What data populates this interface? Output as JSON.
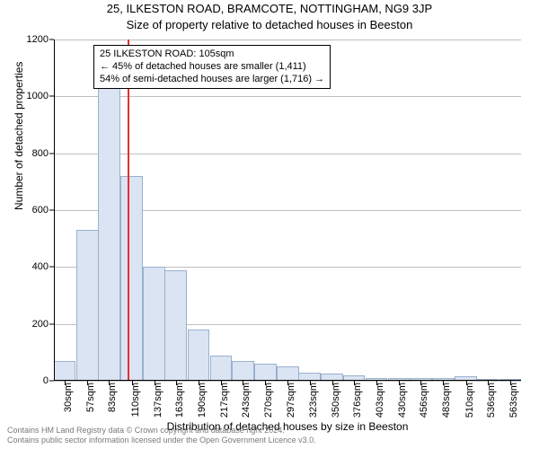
{
  "title": "25, ILKESTON ROAD, BRAMCOTE, NOTTINGHAM, NG9 3JP",
  "subtitle": "Size of property relative to detached houses in Beeston",
  "ylabel": "Number of detached properties",
  "xlabel": "Distribution of detached houses by size in Beeston",
  "footer_line1": "Contains HM Land Registry data © Crown copyright and database right 2024.",
  "footer_line2": "Contains public sector information licensed under the Open Government Licence v3.0.",
  "annotation": {
    "line1": "25 ILKESTON ROAD: 105sqm",
    "line2": "← 45% of detached houses are smaller (1,411)",
    "line3": "54% of semi-detached houses are larger (1,716) →"
  },
  "chart": {
    "type": "histogram",
    "ylim": [
      0,
      1200
    ],
    "ytick_step": 200,
    "background_color": "#ffffff",
    "grid_color": "#bfbfbf",
    "bar_fill": "#dbe4f2",
    "bar_stroke": "#9ab0d0",
    "marker_color": "#e43030",
    "marker_x_value": 105,
    "x_min": 17,
    "x_max": 576,
    "bin_width_sqm": 26.5,
    "yticks": [
      0,
      200,
      400,
      600,
      800,
      1000,
      1200
    ],
    "xticks": [
      30,
      57,
      83,
      110,
      137,
      163,
      190,
      217,
      243,
      270,
      297,
      323,
      350,
      376,
      403,
      430,
      456,
      483,
      510,
      536,
      563
    ],
    "xtick_unit": "sqm",
    "bars": [
      {
        "x": 30,
        "v": 70
      },
      {
        "x": 57,
        "v": 530
      },
      {
        "x": 83,
        "v": 1035
      },
      {
        "x": 110,
        "v": 720
      },
      {
        "x": 137,
        "v": 400
      },
      {
        "x": 163,
        "v": 390
      },
      {
        "x": 190,
        "v": 180
      },
      {
        "x": 217,
        "v": 90
      },
      {
        "x": 243,
        "v": 70
      },
      {
        "x": 270,
        "v": 60
      },
      {
        "x": 297,
        "v": 50
      },
      {
        "x": 323,
        "v": 30
      },
      {
        "x": 350,
        "v": 25
      },
      {
        "x": 376,
        "v": 20
      },
      {
        "x": 403,
        "v": 10
      },
      {
        "x": 430,
        "v": 8
      },
      {
        "x": 456,
        "v": 10
      },
      {
        "x": 483,
        "v": 10
      },
      {
        "x": 510,
        "v": 15
      },
      {
        "x": 536,
        "v": 5
      },
      {
        "x": 563,
        "v": 5
      }
    ]
  }
}
